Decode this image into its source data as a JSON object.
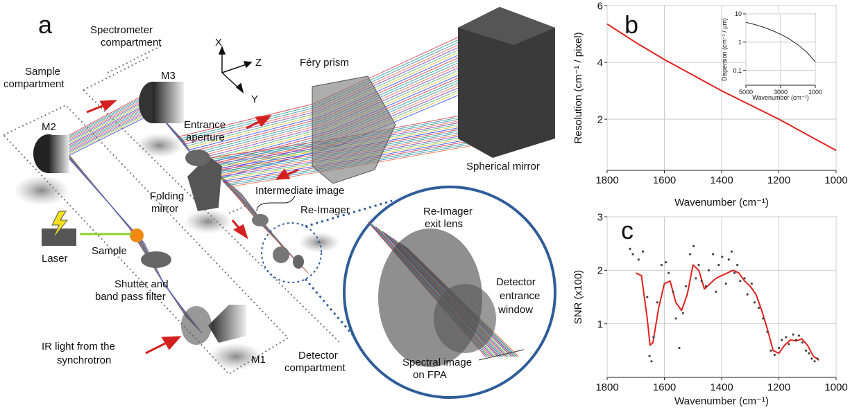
{
  "diagram": {
    "panel_label": "a",
    "labels": {
      "spectrometer": [
        "Spectrometer",
        "compartment"
      ],
      "sample_comp": [
        "Sample",
        "compartment"
      ],
      "m2": "M2",
      "m3": "M3",
      "m1": "M1",
      "axis_x": "X",
      "axis_z": "Z",
      "axis_y": "Y",
      "prism": "Féry prism",
      "aperture": [
        "Entrance",
        "aperture"
      ],
      "spherical": "Spherical mirror",
      "intermediate": "Intermediate image",
      "folding": [
        "Folding",
        "mirror"
      ],
      "reimager": "Re-Imager",
      "laser": "Laser",
      "sample": "Sample",
      "shutter": [
        "Shutter and",
        "band pass filter"
      ],
      "ir": [
        "IR light from the",
        "synchrotron"
      ],
      "detector_comp": [
        "Detector",
        "compartment"
      ],
      "exit_lens": [
        "Re-Imager",
        "exit lens"
      ],
      "entrance_window": [
        "Detector",
        "entrance",
        "window"
      ],
      "fpa": [
        "Spectral image",
        "on FPA"
      ]
    }
  },
  "chart_data": [
    {
      "type": "line",
      "panel_label": "b",
      "x_label": "Wavenumber (cm⁻¹)",
      "y_label": "Resolution (cm⁻¹ / pixel)",
      "xlim": [
        1800,
        1000
      ],
      "ylim": [
        0.2,
        6
      ],
      "xticks": [
        1800,
        1600,
        1400,
        1200,
        1000
      ],
      "yticks": [
        2,
        4,
        6
      ],
      "grid": true,
      "series": [
        {
          "type": "line",
          "color": "#e3201b",
          "x": [
            1800,
            1700,
            1600,
            1500,
            1400,
            1300,
            1200,
            1100,
            1000
          ],
          "values": [
            5.35,
            4.7,
            4.1,
            3.55,
            3.0,
            2.5,
            2.0,
            1.45,
            0.9
          ]
        }
      ]
    },
    {
      "type": "line",
      "x_label": "Wavenumber (cm⁻¹)",
      "y_label": "Dispersion (cm⁻¹ / µm)",
      "xlim": [
        5000,
        1000
      ],
      "ylim": [
        0.03,
        10
      ],
      "log_y": true,
      "xticks": [
        5000,
        3000,
        1000
      ],
      "yticks": [
        0.1,
        1,
        10
      ],
      "grid": true,
      "series": [
        {
          "type": "line",
          "color": "#222222",
          "x": [
            5000,
            4500,
            4000,
            3500,
            3000,
            2500,
            2000,
            1500,
            1000
          ],
          "values": [
            5,
            4.2,
            3.4,
            2.6,
            1.9,
            1.3,
            0.8,
            0.45,
            0.2
          ]
        }
      ]
    },
    {
      "type": "line",
      "panel_label": "c",
      "x_label": "Wavenumber (cm⁻¹)",
      "y_label": "SNR (x100)",
      "xlim": [
        1800,
        1000
      ],
      "ylim": [
        0,
        3
      ],
      "xticks": [
        1800,
        1600,
        1400,
        1200,
        1000
      ],
      "yticks": [
        1,
        2,
        3
      ],
      "grid": true,
      "series": [
        {
          "type": "line",
          "color": "#e3201b",
          "x": [
            1700,
            1680,
            1660,
            1650,
            1640,
            1620,
            1600,
            1580,
            1560,
            1540,
            1520,
            1500,
            1480,
            1460,
            1440,
            1420,
            1400,
            1380,
            1360,
            1340,
            1320,
            1300,
            1280,
            1260,
            1240,
            1220,
            1200,
            1180,
            1160,
            1140,
            1120,
            1100,
            1080,
            1060
          ],
          "values": [
            1.95,
            1.9,
            1.1,
            0.6,
            0.65,
            1.3,
            1.75,
            1.8,
            1.4,
            1.25,
            1.55,
            2.1,
            2.0,
            1.65,
            1.75,
            1.85,
            1.9,
            1.95,
            2.0,
            1.95,
            1.8,
            1.7,
            1.55,
            1.25,
            0.9,
            0.5,
            0.45,
            0.6,
            0.7,
            0.68,
            0.72,
            0.6,
            0.4,
            0.32
          ]
        },
        {
          "type": "scatter",
          "color": "#444444",
          "x": [
            1720,
            1710,
            1690,
            1675,
            1660,
            1652,
            1645,
            1638,
            1625,
            1610,
            1595,
            1585,
            1570,
            1560,
            1548,
            1535,
            1525,
            1510,
            1498,
            1490,
            1480,
            1470,
            1455,
            1445,
            1430,
            1420,
            1410,
            1398,
            1385,
            1375,
            1365,
            1355,
            1345,
            1335,
            1320,
            1310,
            1295,
            1285,
            1270,
            1255,
            1240,
            1228,
            1215,
            1200,
            1190,
            1175,
            1165,
            1150,
            1140,
            1130,
            1118,
            1105,
            1095,
            1085,
            1075,
            1065
          ],
          "values": [
            2.4,
            2.3,
            2.2,
            2.35,
            1.5,
            0.4,
            0.3,
            0.75,
            1.4,
            2.1,
            2.15,
            1.95,
            1.6,
            1.1,
            0.55,
            1.2,
            1.7,
            2.3,
            2.45,
            1.85,
            2.1,
            1.8,
            1.7,
            2.0,
            2.3,
            1.6,
            2.1,
            2.25,
            1.75,
            2.2,
            2.35,
            1.95,
            2.1,
            1.8,
            1.85,
            1.55,
            1.75,
            1.4,
            1.3,
            1.1,
            0.85,
            0.5,
            0.42,
            0.55,
            0.7,
            0.75,
            0.62,
            0.8,
            0.7,
            0.78,
            0.65,
            0.5,
            0.45,
            0.35,
            0.3,
            0.35
          ]
        }
      ]
    }
  ]
}
